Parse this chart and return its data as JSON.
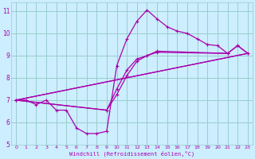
{
  "xlabel": "Windchill (Refroidissement éolien,°C)",
  "bg_color": "#cceeff",
  "grid_color": "#99cccc",
  "line_color": "#aa00aa",
  "xlim": [
    -0.5,
    23.5
  ],
  "ylim": [
    5,
    11.4
  ],
  "xticks": [
    0,
    1,
    2,
    3,
    4,
    5,
    6,
    7,
    8,
    9,
    10,
    11,
    12,
    13,
    14,
    15,
    16,
    17,
    18,
    19,
    20,
    21,
    22,
    23
  ],
  "yticks": [
    5,
    6,
    7,
    8,
    9,
    10,
    11
  ],
  "line1_x": [
    0,
    1,
    2,
    3,
    4,
    5,
    6,
    7,
    8,
    9,
    10,
    11,
    12,
    13,
    14,
    15,
    16,
    17,
    18,
    19,
    20,
    21
  ],
  "line1_y": [
    7.0,
    7.0,
    6.8,
    7.0,
    6.55,
    6.55,
    5.75,
    5.5,
    5.5,
    5.6,
    8.55,
    9.75,
    10.55,
    11.05,
    10.65,
    10.3,
    10.1,
    10.0,
    9.75,
    9.5,
    9.45,
    9.1
  ],
  "line2_x": [
    0,
    23
  ],
  "line2_y": [
    7.0,
    9.1
  ],
  "line3_x": [
    0,
    23
  ],
  "line3_y": [
    7.0,
    9.1
  ],
  "line4_x": [
    0,
    9,
    10,
    11,
    12,
    13,
    14,
    21,
    22,
    23
  ],
  "line4_y": [
    7.0,
    6.55,
    7.5,
    8.35,
    8.85,
    9.0,
    9.15,
    9.1,
    9.45,
    9.1
  ],
  "line5_x": [
    0,
    9,
    10,
    11,
    12,
    13,
    14,
    21,
    22,
    23
  ],
  "line5_y": [
    7.0,
    6.55,
    7.25,
    8.1,
    8.75,
    9.0,
    9.2,
    9.1,
    9.45,
    9.1
  ]
}
